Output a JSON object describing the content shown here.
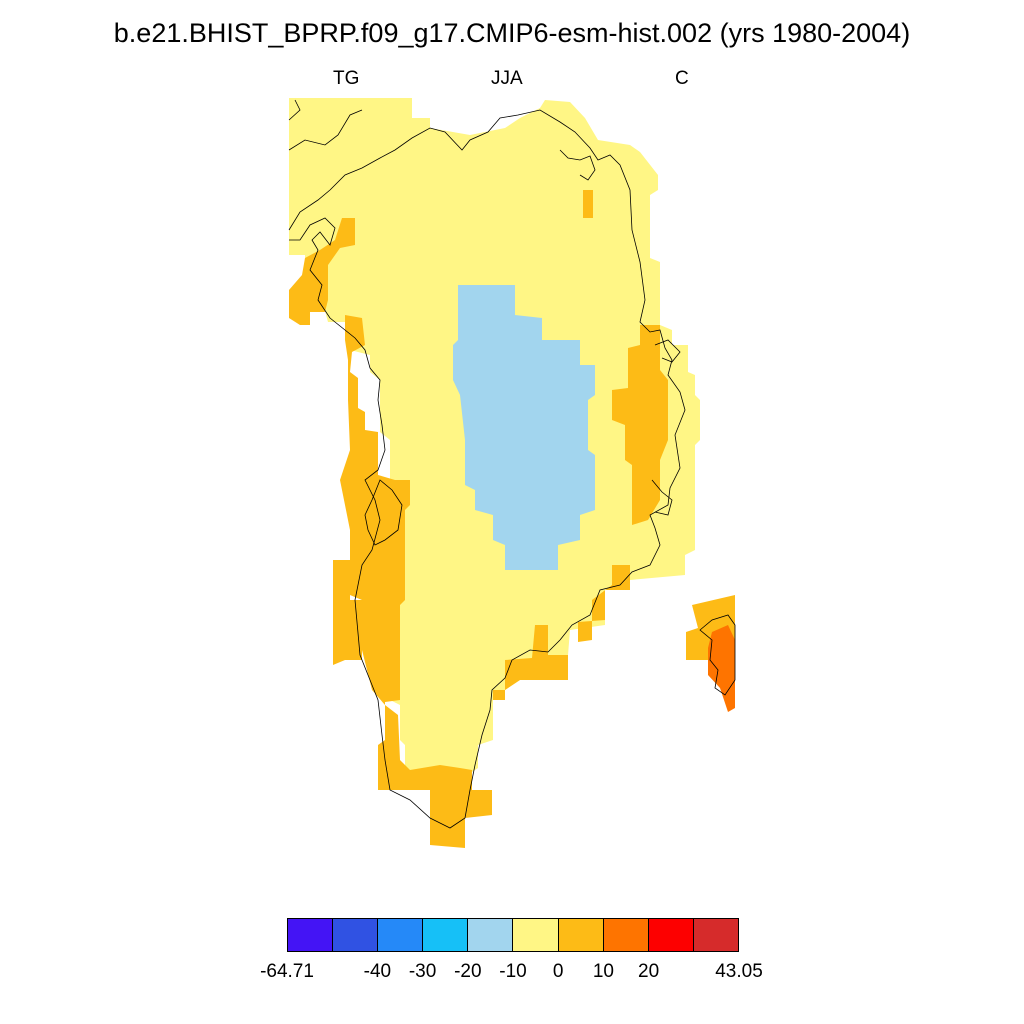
{
  "title": "b.e21.BHIST_BPRP.f09_g17.CMIP6-esm-hist.002 (yrs 1980-2004)",
  "subtitles": {
    "left": "TG",
    "center": "JJA",
    "right": "C"
  },
  "colorbar": {
    "colors": [
      "#4414f5",
      "#3052e3",
      "#2589f8",
      "#16c0f7",
      "#a2d5ee",
      "#fff685",
      "#fdbb16",
      "#fe7400",
      "#fd0000",
      "#d62b2b"
    ],
    "labels": [
      "-64.71",
      "-40",
      "-30",
      "-20",
      "-10",
      "0",
      "10",
      "20",
      "43.05"
    ]
  },
  "map": {
    "region": "Greenland",
    "field_colors": {
      "cold": "#a2d5ee",
      "neutral": "#fff685",
      "warm": "#fdbb16",
      "hot": "#fe7400"
    }
  }
}
